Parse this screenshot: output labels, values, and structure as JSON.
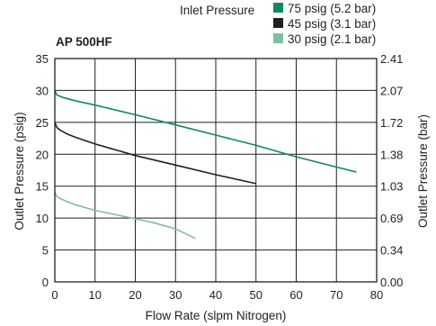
{
  "chart_data": {
    "type": "line",
    "title": "AP 500HF",
    "xlabel": "Flow Rate (slpm Nitrogen)",
    "ylabel": "Outlet Pressure (psig)",
    "y2label": "Outlet Pressure (bar)",
    "legend_title": "Inlet Pressure",
    "xlim": [
      0,
      80
    ],
    "ylim": [
      0,
      35
    ],
    "x_ticks": [
      "0",
      "10",
      "20",
      "30",
      "40",
      "50",
      "60",
      "70",
      "80"
    ],
    "y_ticks": [
      "0",
      "5",
      "10",
      "15",
      "20",
      "25",
      "30",
      "35"
    ],
    "y2_ticks": [
      "0.00",
      "0.34",
      "0.69",
      "1.03",
      "1.38",
      "1.72",
      "2.07",
      "2.41"
    ],
    "grid": true,
    "legend_position": "top-right",
    "series": [
      {
        "name": "75 psig (5.2 bar)",
        "color": "#0f8a5a",
        "x": [
          0,
          0.5,
          2,
          5,
          10,
          20,
          30,
          40,
          50,
          60,
          70,
          75
        ],
        "y": [
          30.0,
          29.3,
          28.9,
          28.4,
          27.7,
          26.2,
          24.6,
          23.0,
          21.4,
          19.6,
          18.0,
          17.2
        ]
      },
      {
        "name": "45 psig (3.1 bar)",
        "color": "#231f20",
        "x": [
          0,
          0.5,
          1.5,
          3,
          5,
          10,
          20,
          30,
          40,
          50
        ],
        "y": [
          25.0,
          24.2,
          23.7,
          23.2,
          22.7,
          21.6,
          19.8,
          18.3,
          16.8,
          15.4
        ]
      },
      {
        "name": "30 psig (2.1 bar)",
        "color": "#7fbfa0",
        "x": [
          0,
          0.5,
          1.5,
          3,
          5,
          10,
          20,
          25,
          30,
          35
        ],
        "y": [
          14.0,
          13.4,
          13.0,
          12.6,
          12.1,
          11.2,
          9.9,
          9.2,
          8.3,
          6.8
        ]
      }
    ]
  }
}
